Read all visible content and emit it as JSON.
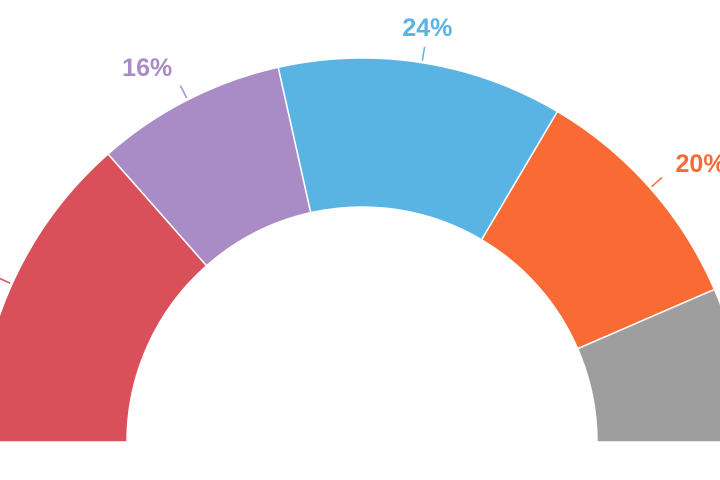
{
  "chart_data": {
    "type": "half-donut",
    "values": [
      27,
      16,
      24,
      20,
      13
    ],
    "value_labels": [
      null,
      "16%",
      "24%",
      "20%",
      null
    ],
    "colors": [
      "#d9505a",
      "#a98bc6",
      "#5ab4e3",
      "#f96a35",
      "#9e9e9e"
    ]
  }
}
